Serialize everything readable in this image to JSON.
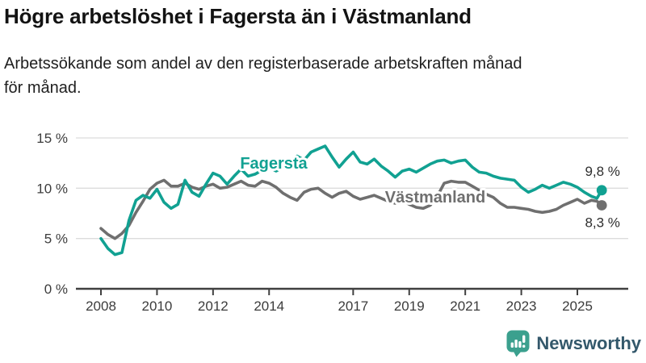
{
  "header": {
    "title": "Högre arbetslöshet i Fagersta än i Västmanland",
    "subtitle_line1": "Arbetssökande som andel av den registerbaserade arbetskraften månad",
    "subtitle_line2": "för månad."
  },
  "footer": {
    "brand": "Newsworthy"
  },
  "colors": {
    "fagersta": "#11A192",
    "vastmanland": "#6F6F6F",
    "gridline": "#dcdcdc",
    "axis": "#404040",
    "logo_bubble": "#3BA08E"
  },
  "chart_data": {
    "type": "line",
    "title": "Högre arbetslöshet i Fagersta än i Västmanland",
    "subtitle": "Arbetssökande som andel av den registerbaserade arbetskraften månad för månad.",
    "unit": "%",
    "xlabel": "",
    "ylabel": "",
    "ylim": [
      0,
      15
    ],
    "xlim": [
      2008,
      2026
    ],
    "grid": "horizontal",
    "legend_position": "inline-labels",
    "y_ticks": [
      {
        "v": 0,
        "label": "0 %"
      },
      {
        "v": 5,
        "label": "5 %"
      },
      {
        "v": 10,
        "label": "10 %"
      },
      {
        "v": 15,
        "label": "15 %"
      }
    ],
    "x_ticks": [
      {
        "v": 2008,
        "label": "2008"
      },
      {
        "v": 2010,
        "label": "2010"
      },
      {
        "v": 2012,
        "label": "2012"
      },
      {
        "v": 2014,
        "label": "2014"
      },
      {
        "v": 2017,
        "label": "2017"
      },
      {
        "v": 2019,
        "label": "2019"
      },
      {
        "v": 2021,
        "label": "2021"
      },
      {
        "v": 2023,
        "label": "2023"
      },
      {
        "v": 2025,
        "label": "2025"
      }
    ],
    "series": [
      {
        "id": "fagersta",
        "name": "Fagersta",
        "color": "#11A192",
        "end_value": 9.8,
        "end_label": "9,8 %",
        "points": [
          [
            2008,
            5.0
          ],
          [
            2008.25,
            4.0
          ],
          [
            2008.5,
            3.4
          ],
          [
            2008.75,
            3.6
          ],
          [
            2009,
            6.8
          ],
          [
            2009.25,
            8.8
          ],
          [
            2009.5,
            9.3
          ],
          [
            2009.75,
            9.0
          ],
          [
            2010,
            9.9
          ],
          [
            2010.25,
            8.6
          ],
          [
            2010.5,
            8.0
          ],
          [
            2010.75,
            8.4
          ],
          [
            2011,
            10.8
          ],
          [
            2011.25,
            9.6
          ],
          [
            2011.5,
            9.2
          ],
          [
            2011.75,
            10.4
          ],
          [
            2012,
            11.5
          ],
          [
            2012.25,
            11.2
          ],
          [
            2012.5,
            10.4
          ],
          [
            2012.75,
            11.2
          ],
          [
            2013,
            11.9
          ],
          [
            2013.25,
            11.2
          ],
          [
            2013.5,
            11.4
          ],
          [
            2013.75,
            11.8
          ],
          [
            2014,
            12.1
          ],
          [
            2014.25,
            11.7
          ],
          [
            2014.5,
            12.1
          ],
          [
            2014.75,
            12.7
          ],
          [
            2015,
            13.2
          ],
          [
            2015.25,
            12.8
          ],
          [
            2015.5,
            13.6
          ],
          [
            2015.75,
            13.9
          ],
          [
            2016,
            14.2
          ],
          [
            2016.25,
            13.1
          ],
          [
            2016.5,
            12.1
          ],
          [
            2016.75,
            12.9
          ],
          [
            2017,
            13.6
          ],
          [
            2017.25,
            12.6
          ],
          [
            2017.5,
            12.4
          ],
          [
            2017.75,
            12.9
          ],
          [
            2018,
            12.2
          ],
          [
            2018.25,
            11.7
          ],
          [
            2018.5,
            11.1
          ],
          [
            2018.75,
            11.7
          ],
          [
            2019,
            11.9
          ],
          [
            2019.25,
            11.6
          ],
          [
            2019.5,
            12.0
          ],
          [
            2019.75,
            12.4
          ],
          [
            2020,
            12.7
          ],
          [
            2020.25,
            12.8
          ],
          [
            2020.5,
            12.5
          ],
          [
            2020.75,
            12.7
          ],
          [
            2021,
            12.8
          ],
          [
            2021.25,
            12.1
          ],
          [
            2021.5,
            11.6
          ],
          [
            2021.75,
            11.5
          ],
          [
            2022,
            11.2
          ],
          [
            2022.25,
            11.0
          ],
          [
            2022.5,
            10.9
          ],
          [
            2022.75,
            10.8
          ],
          [
            2023,
            10.1
          ],
          [
            2023.25,
            9.6
          ],
          [
            2023.5,
            9.9
          ],
          [
            2023.75,
            10.3
          ],
          [
            2024,
            10.0
          ],
          [
            2024.25,
            10.3
          ],
          [
            2024.5,
            10.6
          ],
          [
            2024.75,
            10.4
          ],
          [
            2025,
            10.1
          ],
          [
            2025.25,
            9.6
          ],
          [
            2025.5,
            9.2
          ],
          [
            2025.7,
            9.0
          ],
          [
            2025.87,
            9.8
          ]
        ]
      },
      {
        "id": "vastmanland",
        "name": "Västmanland",
        "color": "#6F6F6F",
        "end_value": 8.3,
        "end_label": "8,3 %",
        "points": [
          [
            2008,
            6.0
          ],
          [
            2008.25,
            5.4
          ],
          [
            2008.5,
            5.0
          ],
          [
            2008.75,
            5.5
          ],
          [
            2009,
            6.3
          ],
          [
            2009.25,
            7.6
          ],
          [
            2009.5,
            8.7
          ],
          [
            2009.75,
            9.9
          ],
          [
            2010,
            10.5
          ],
          [
            2010.25,
            10.8
          ],
          [
            2010.5,
            10.2
          ],
          [
            2010.75,
            10.2
          ],
          [
            2011,
            10.5
          ],
          [
            2011.25,
            10.1
          ],
          [
            2011.5,
            9.9
          ],
          [
            2011.75,
            10.2
          ],
          [
            2012,
            10.4
          ],
          [
            2012.25,
            10.0
          ],
          [
            2012.5,
            10.1
          ],
          [
            2012.75,
            10.4
          ],
          [
            2013,
            10.7
          ],
          [
            2013.25,
            10.3
          ],
          [
            2013.5,
            10.2
          ],
          [
            2013.75,
            10.7
          ],
          [
            2014,
            10.5
          ],
          [
            2014.25,
            10.1
          ],
          [
            2014.5,
            9.5
          ],
          [
            2014.75,
            9.1
          ],
          [
            2015,
            8.8
          ],
          [
            2015.25,
            9.6
          ],
          [
            2015.5,
            9.9
          ],
          [
            2015.75,
            10.0
          ],
          [
            2016,
            9.5
          ],
          [
            2016.25,
            9.1
          ],
          [
            2016.5,
            9.5
          ],
          [
            2016.75,
            9.7
          ],
          [
            2017,
            9.2
          ],
          [
            2017.25,
            8.9
          ],
          [
            2017.5,
            9.1
          ],
          [
            2017.75,
            9.3
          ],
          [
            2018,
            9.0
          ],
          [
            2018.25,
            8.7
          ],
          [
            2018.5,
            8.5
          ],
          [
            2018.75,
            8.8
          ],
          [
            2019,
            8.4
          ],
          [
            2019.25,
            8.1
          ],
          [
            2019.5,
            8.0
          ],
          [
            2019.75,
            8.3
          ],
          [
            2020,
            9.2
          ],
          [
            2020.25,
            10.5
          ],
          [
            2020.5,
            10.7
          ],
          [
            2020.75,
            10.6
          ],
          [
            2021,
            10.6
          ],
          [
            2021.25,
            10.2
          ],
          [
            2021.5,
            9.8
          ],
          [
            2021.75,
            9.4
          ],
          [
            2022,
            9.1
          ],
          [
            2022.25,
            8.5
          ],
          [
            2022.5,
            8.1
          ],
          [
            2022.75,
            8.1
          ],
          [
            2023,
            8.0
          ],
          [
            2023.25,
            7.9
          ],
          [
            2023.5,
            7.7
          ],
          [
            2023.75,
            7.6
          ],
          [
            2024,
            7.7
          ],
          [
            2024.25,
            7.9
          ],
          [
            2024.5,
            8.3
          ],
          [
            2024.75,
            8.6
          ],
          [
            2025,
            8.9
          ],
          [
            2025.25,
            8.5
          ],
          [
            2025.5,
            8.8
          ],
          [
            2025.7,
            8.7
          ],
          [
            2025.87,
            8.3
          ]
        ]
      }
    ]
  }
}
